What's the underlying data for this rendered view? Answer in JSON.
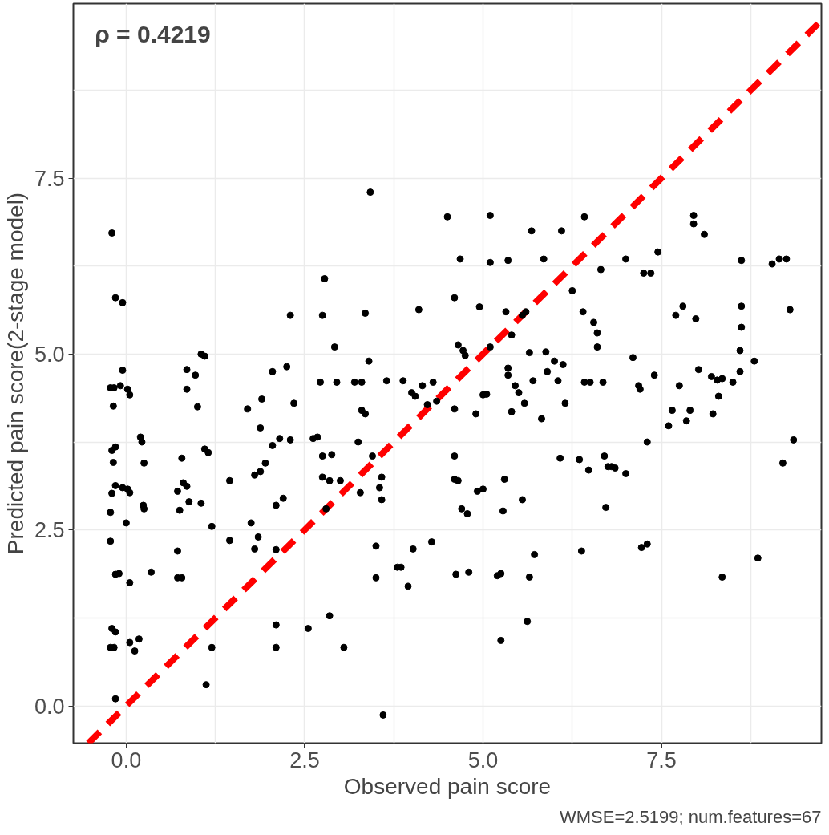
{
  "chart_data": {
    "type": "scatter",
    "xlabel": "Observed pain score",
    "ylabel": "Predicted pain score(2-stage model)",
    "annotations": [
      "ρ = 0.4219",
      "WMSE=2.5199; num.features=67"
    ],
    "xlim": [
      -0.74,
      9.74
    ],
    "ylim": [
      -0.53,
      9.98
    ],
    "xticks": [
      {
        "value": 0,
        "label": "0.0"
      },
      {
        "value": 1.25,
        "label": null
      },
      2.5,
      {
        "value": 3.75,
        "label": null
      },
      {
        "value": 5,
        "label": "5.0"
      },
      {
        "value": 6.25,
        "label": null
      },
      7.5,
      {
        "value": 8.75,
        "label": null
      }
    ],
    "yticks": [
      {
        "value": 0,
        "label": "0.0"
      },
      {
        "value": 1.25,
        "label": null
      },
      2.5,
      {
        "value": 3.75,
        "label": null
      },
      {
        "value": 5,
        "label": "5.0"
      },
      {
        "value": 6.25,
        "label": null
      },
      7.5,
      {
        "value": 8.75,
        "label": null
      }
    ],
    "grid": true,
    "series": [
      {
        "color": "#000000",
        "marker": "circle",
        "x": [
          -0.2,
          -0.15,
          -0.05,
          -0.22,
          -0.17,
          -0.05,
          -0.08,
          0.02,
          0.05,
          -0.18,
          -0.2,
          -0.15,
          -0.18,
          -0.15,
          -0.05,
          0.02,
          0.05,
          -0.2,
          -0.22,
          0.0,
          -0.22,
          -0.15,
          -0.1,
          0.05,
          -0.2,
          -0.15,
          -0.22,
          -0.17,
          0.05,
          0.12,
          -0.15,
          0.18,
          0.2,
          0.22,
          0.25,
          0.24,
          0.25,
          0.35,
          0.85,
          0.85,
          0.97,
          1.0,
          1.05,
          1.1,
          0.78,
          0.8,
          0.85,
          0.72,
          0.75,
          0.88,
          0.72,
          0.72,
          0.78,
          1.05,
          1.1,
          1.15,
          1.2,
          1.12,
          1.2,
          1.45,
          1.45,
          1.7,
          1.8,
          1.88,
          1.88,
          1.9,
          1.95,
          1.75,
          1.8,
          1.85,
          2.05,
          2.05,
          2.1,
          2.1,
          2.1,
          2.1,
          2.15,
          2.2,
          2.25,
          2.3,
          2.3,
          2.35,
          2.55,
          2.62,
          2.68,
          2.72,
          2.75,
          2.75,
          2.78,
          2.75,
          2.8,
          2.85,
          2.88,
          2.85,
          2.95,
          2.92,
          3.0,
          3.05,
          3.2,
          3.25,
          3.28,
          3.3,
          3.3,
          3.35,
          3.35,
          3.4,
          3.42,
          3.45,
          3.5,
          3.5,
          3.55,
          3.58,
          3.58,
          3.6,
          3.65,
          3.8,
          3.85,
          3.88,
          3.95,
          4.0,
          4.02,
          4.05,
          4.1,
          4.15,
          4.22,
          4.28,
          4.3,
          4.35,
          4.5,
          4.6,
          4.6,
          4.6,
          4.6,
          4.65,
          4.62,
          4.65,
          4.68,
          4.72,
          4.7,
          4.75,
          4.78,
          4.8,
          4.9,
          4.92,
          4.95,
          5.0,
          5.0,
          5.05,
          5.1,
          5.1,
          5.1,
          5.2,
          5.25,
          5.25,
          5.28,
          5.3,
          5.32,
          5.35,
          5.35,
          5.35,
          5.4,
          5.4,
          5.45,
          5.5,
          5.55,
          5.55,
          5.58,
          5.6,
          5.62,
          5.65,
          5.65,
          5.68,
          5.7,
          5.72,
          5.85,
          5.82,
          5.88,
          5.9,
          6.0,
          6.05,
          6.08,
          6.1,
          6.12,
          6.15,
          6.25,
          6.35,
          6.38,
          6.4,
          6.42,
          6.42,
          6.48,
          6.55,
          6.5,
          6.6,
          6.6,
          6.65,
          6.68,
          6.7,
          6.72,
          6.75,
          6.8,
          6.85,
          7.0,
          7.0,
          7.1,
          7.18,
          7.2,
          7.22,
          7.25,
          7.3,
          7.3,
          7.35,
          7.4,
          7.45,
          7.6,
          7.65,
          7.7,
          7.75,
          7.8,
          7.85,
          7.9,
          7.95,
          7.95,
          7.98,
          8.02,
          8.1,
          8.2,
          8.22,
          8.28,
          8.3,
          8.35,
          8.35,
          8.5,
          8.6,
          8.6,
          8.62,
          8.62,
          8.62,
          8.8,
          8.85,
          9.05,
          9.15,
          9.2,
          9.25,
          9.3,
          9.35
        ],
        "values": [
          6.72,
          5.8,
          5.73,
          4.52,
          4.52,
          4.77,
          4.55,
          4.5,
          4.42,
          4.26,
          3.63,
          3.68,
          3.46,
          3.13,
          3.1,
          3.08,
          3.03,
          3.02,
          2.75,
          2.6,
          2.34,
          1.87,
          1.88,
          1.75,
          1.1,
          1.05,
          0.83,
          0.83,
          0.9,
          0.78,
          0.1,
          0.95,
          3.82,
          3.75,
          3.45,
          2.85,
          2.8,
          1.9,
          4.5,
          4.78,
          4.7,
          4.25,
          5.0,
          4.97,
          3.52,
          3.17,
          3.12,
          3.05,
          2.78,
          2.9,
          2.2,
          1.82,
          1.82,
          2.88,
          3.65,
          3.6,
          2.55,
          0.3,
          0.83,
          3.2,
          2.35,
          4.22,
          3.28,
          3.33,
          3.95,
          4.36,
          3.45,
          2.6,
          2.23,
          2.4,
          3.7,
          4.75,
          2.85,
          2.22,
          1.15,
          0.83,
          3.8,
          2.95,
          4.82,
          5.55,
          3.78,
          4.3,
          1.1,
          3.8,
          3.82,
          4.6,
          3.55,
          5.55,
          6.07,
          3.25,
          2.8,
          3.2,
          3.57,
          1.28,
          4.6,
          5.1,
          3.2,
          0.83,
          4.6,
          3.75,
          3.03,
          4.6,
          4.2,
          4.15,
          5.58,
          4.9,
          7.3,
          3.55,
          2.27,
          1.82,
          3.1,
          3.25,
          2.93,
          -0.13,
          4.62,
          1.97,
          1.97,
          4.62,
          1.7,
          4.45,
          2.23,
          4.4,
          5.63,
          4.55,
          4.28,
          2.33,
          4.6,
          4.33,
          6.95,
          5.8,
          4.22,
          3.55,
          3.22,
          3.2,
          1.87,
          5.13,
          6.35,
          5.05,
          2.8,
          4.98,
          2.73,
          1.9,
          4.15,
          3.05,
          5.67,
          4.42,
          3.08,
          4.43,
          6.97,
          6.3,
          5.1,
          1.85,
          1.88,
          0.93,
          2.77,
          3.22,
          5.6,
          6.33,
          4.8,
          4.7,
          4.18,
          5.27,
          4.55,
          4.45,
          5.55,
          2.93,
          4.3,
          5.6,
          1.2,
          1.83,
          5.02,
          6.75,
          4.62,
          2.15,
          6.35,
          4.08,
          5.03,
          4.75,
          4.9,
          4.62,
          3.52,
          6.75,
          4.85,
          4.3,
          5.9,
          3.5,
          2.2,
          5.6,
          4.6,
          6.95,
          3.35,
          5.45,
          4.6,
          5.3,
          5.1,
          6.2,
          4.6,
          3.55,
          2.82,
          3.4,
          3.4,
          3.38,
          3.3,
          6.35,
          4.95,
          4.55,
          4.5,
          2.25,
          6.15,
          2.3,
          3.75,
          6.15,
          4.7,
          6.45,
          3.98,
          4.2,
          5.55,
          4.55,
          5.68,
          4.05,
          4.2,
          6.85,
          6.97,
          5.5,
          4.78,
          6.7,
          4.68,
          4.15,
          4.63,
          4.4,
          4.65,
          1.83,
          4.6,
          4.75,
          5.05,
          5.38,
          5.68,
          6.33,
          4.9,
          2.1,
          6.28,
          6.35,
          3.45,
          6.35,
          5.63,
          3.78
        ]
      },
      {
        "type": "line",
        "color": "#ff0000",
        "line_style": "dashed",
        "x": [
          -0.53,
          9.74
        ],
        "values": [
          -0.53,
          9.74
        ]
      }
    ]
  }
}
